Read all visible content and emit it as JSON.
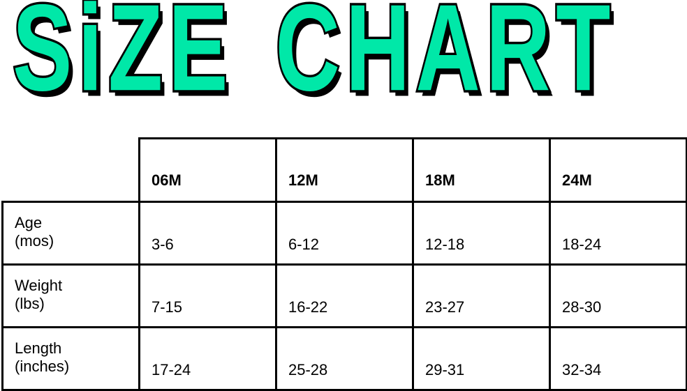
{
  "title": {
    "word1": "SiZE",
    "word2": "CHART",
    "fill_color": "#00e8a8",
    "outline_color": "#000000"
  },
  "table": {
    "columns": [
      "06M",
      "12M",
      "18M",
      "24M"
    ],
    "rows": [
      {
        "label_line1": "Age",
        "label_line2": "(mos)",
        "values": [
          "3-6",
          "6-12",
          "12-18",
          "18-24"
        ]
      },
      {
        "label_line1": "Weight",
        "label_line2": "(lbs)",
        "values": [
          "7-15",
          "16-22",
          "23-27",
          "28-30"
        ]
      },
      {
        "label_line1": "Length",
        "label_line2": "(inches)",
        "values": [
          "17-24",
          "25-28",
          "29-31",
          "32-34"
        ]
      }
    ]
  }
}
